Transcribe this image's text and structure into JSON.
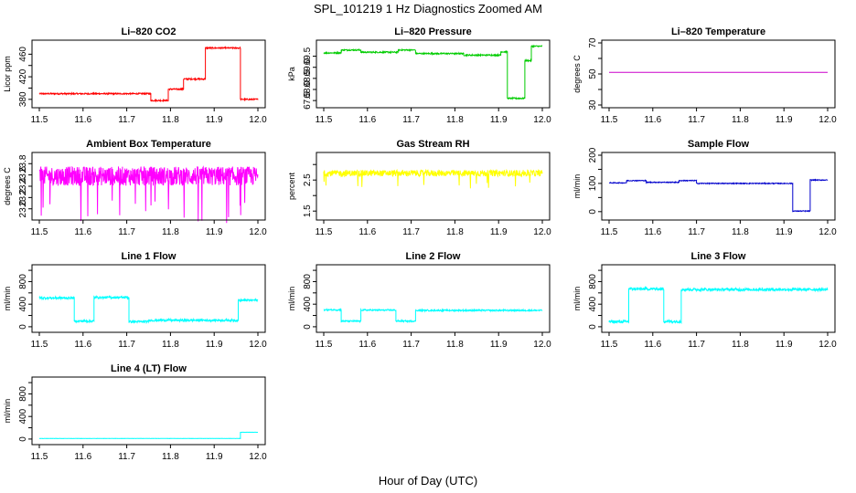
{
  "title": "SPL_101219  1 Hz Diagnostics Zoomed AM",
  "xlabel": "Hour of Day (UTC)",
  "x_ticks": [
    "11.5",
    "11.6",
    "11.7",
    "11.8",
    "11.9",
    "12.0"
  ],
  "chart_data": [
    {
      "type": "line",
      "title": "Li–820 CO2",
      "ylabel": "Licor ppm",
      "color": "#ff0000",
      "xlim": [
        11.5,
        12.0
      ],
      "ylim": [
        370,
        480
      ],
      "yticks": [
        380,
        400,
        420,
        440,
        460
      ],
      "ytick_labels": [
        "380",
        "",
        "420",
        "",
        "460"
      ],
      "noise": 1.2,
      "spikes": 0,
      "segments": [
        [
          11.5,
          11.755,
          390
        ],
        [
          11.755,
          11.795,
          378
        ],
        [
          11.795,
          11.83,
          398
        ],
        [
          11.83,
          11.88,
          416
        ],
        [
          11.88,
          11.96,
          471
        ],
        [
          11.96,
          12.0,
          380
        ]
      ]
    },
    {
      "type": "line",
      "title": "Li–820 Pressure",
      "ylabel": "kPa",
      "color": "#00cc00",
      "xlim": [
        11.5,
        12.0
      ],
      "ylim": [
        67.3,
        70.1
      ],
      "yticks": [
        67.5,
        68.0,
        68.5,
        69.0,
        69.5
      ],
      "ytick_labels": [
        "67.5",
        "68.0",
        "68.5",
        "69.0",
        "69.5"
      ],
      "noise": 0.03,
      "spikes": 0,
      "segments": [
        [
          11.5,
          11.54,
          69.65
        ],
        [
          11.54,
          11.585,
          69.78
        ],
        [
          11.585,
          11.67,
          69.68
        ],
        [
          11.67,
          11.71,
          69.78
        ],
        [
          11.71,
          11.82,
          69.62
        ],
        [
          11.82,
          11.905,
          69.55
        ],
        [
          11.905,
          11.92,
          69.7
        ],
        [
          11.92,
          11.96,
          67.6
        ],
        [
          11.96,
          11.975,
          69.3
        ],
        [
          11.975,
          12.0,
          69.95
        ]
      ]
    },
    {
      "type": "line",
      "title": "Li–820 Temperature",
      "ylabel": "degrees C",
      "color": "#cc00cc",
      "xlim": [
        11.5,
        12.0
      ],
      "ylim": [
        30,
        70
      ],
      "yticks": [
        30,
        40,
        50,
        60,
        70
      ],
      "ytick_labels": [
        "30",
        "",
        "50",
        "",
        "70"
      ],
      "noise": 0,
      "spikes": 0,
      "segments": [
        [
          11.5,
          12.0,
          51
        ]
      ]
    },
    {
      "type": "line",
      "title": "Ambient Box Temperature",
      "ylabel": "degrees C",
      "color": "#ff00ff",
      "xlim": [
        11.5,
        12.0
      ],
      "ylim": [
        22.85,
        23.95
      ],
      "yticks": [
        23.0,
        23.2,
        23.4,
        23.6,
        23.8
      ],
      "ytick_labels": [
        "23.0",
        "23.2",
        "23.4",
        "23.6",
        "23.8"
      ],
      "noise": 0.17,
      "spikes": 30,
      "segments": [
        [
          11.5,
          12.0,
          23.58
        ]
      ]
    },
    {
      "type": "line",
      "title": "Gas Stream RH",
      "ylabel": "percent",
      "color": "#ffff00",
      "xlim": [
        11.5,
        12.0
      ],
      "ylim": [
        1.3,
        3.3
      ],
      "yticks": [
        1.5,
        2.0,
        2.5,
        3.0
      ],
      "ytick_labels": [
        "1.5",
        "",
        "2.5",
        ""
      ],
      "noise": 0.1,
      "spikes": 14,
      "segments": [
        [
          11.5,
          12.0,
          2.72
        ]
      ]
    },
    {
      "type": "line",
      "title": "Sample Flow",
      "ylabel": "ml/min",
      "color": "#0000cc",
      "xlim": [
        11.5,
        12.0
      ],
      "ylim": [
        -20,
        200
      ],
      "yticks": [
        0,
        50,
        100,
        150,
        200
      ],
      "ytick_labels": [
        "0",
        "",
        "100",
        "",
        "200"
      ],
      "noise": 1.5,
      "spikes": 0,
      "segments": [
        [
          11.5,
          11.54,
          102
        ],
        [
          11.54,
          11.585,
          110
        ],
        [
          11.585,
          11.66,
          104
        ],
        [
          11.66,
          11.7,
          110
        ],
        [
          11.7,
          11.92,
          100
        ],
        [
          11.92,
          11.96,
          2
        ],
        [
          11.96,
          12.0,
          112
        ]
      ]
    },
    {
      "type": "line",
      "title": "Line 1 Flow",
      "ylabel": "ml/min",
      "color": "#00ffff",
      "xlim": [
        11.5,
        12.0
      ],
      "ylim": [
        -50,
        1050
      ],
      "yticks": [
        0,
        200,
        400,
        600,
        800,
        1000
      ],
      "ytick_labels": [
        "0",
        "",
        "400",
        "",
        "800",
        ""
      ],
      "noise": 20,
      "spikes": 0,
      "segments": [
        [
          11.5,
          11.58,
          510
        ],
        [
          11.58,
          11.625,
          100
        ],
        [
          11.625,
          11.705,
          520
        ],
        [
          11.705,
          11.75,
          90
        ],
        [
          11.75,
          11.955,
          115
        ],
        [
          11.955,
          12.0,
          470
        ]
      ]
    },
    {
      "type": "line",
      "title": "Line 2 Flow",
      "ylabel": "ml/min",
      "color": "#00ffff",
      "xlim": [
        11.5,
        12.0
      ],
      "ylim": [
        -50,
        1050
      ],
      "yticks": [
        0,
        200,
        400,
        600,
        800,
        1000
      ],
      "ytick_labels": [
        "0",
        "",
        "400",
        "",
        "800",
        ""
      ],
      "noise": 13,
      "spikes": 0,
      "segments": [
        [
          11.5,
          11.54,
          300
        ],
        [
          11.54,
          11.585,
          100
        ],
        [
          11.585,
          11.665,
          295
        ],
        [
          11.665,
          11.71,
          100
        ],
        [
          11.71,
          12.0,
          290
        ]
      ]
    },
    {
      "type": "line",
      "title": "Line 3 Flow",
      "ylabel": "ml/min",
      "color": "#00ffff",
      "xlim": [
        11.5,
        12.0
      ],
      "ylim": [
        -50,
        1050
      ],
      "yticks": [
        0,
        200,
        400,
        600,
        800,
        1000
      ],
      "ytick_labels": [
        "0",
        "",
        "400",
        "",
        "800",
        ""
      ],
      "noise": 25,
      "spikes": 0,
      "segments": [
        [
          11.5,
          11.545,
          90
        ],
        [
          11.545,
          11.625,
          670
        ],
        [
          11.625,
          11.665,
          95
        ],
        [
          11.665,
          12.0,
          660
        ]
      ]
    },
    {
      "type": "line",
      "title": "Line 4 (LT) Flow",
      "ylabel": "ml/min",
      "color": "#00ffff",
      "xlim": [
        11.5,
        12.0
      ],
      "ylim": [
        -50,
        1050
      ],
      "yticks": [
        0,
        200,
        400,
        600,
        800,
        1000
      ],
      "ytick_labels": [
        "0",
        "",
        "400",
        "",
        "800",
        ""
      ],
      "noise": 2,
      "spikes": 0,
      "segments": [
        [
          11.5,
          11.96,
          10
        ],
        [
          11.96,
          12.0,
          120
        ]
      ]
    }
  ]
}
